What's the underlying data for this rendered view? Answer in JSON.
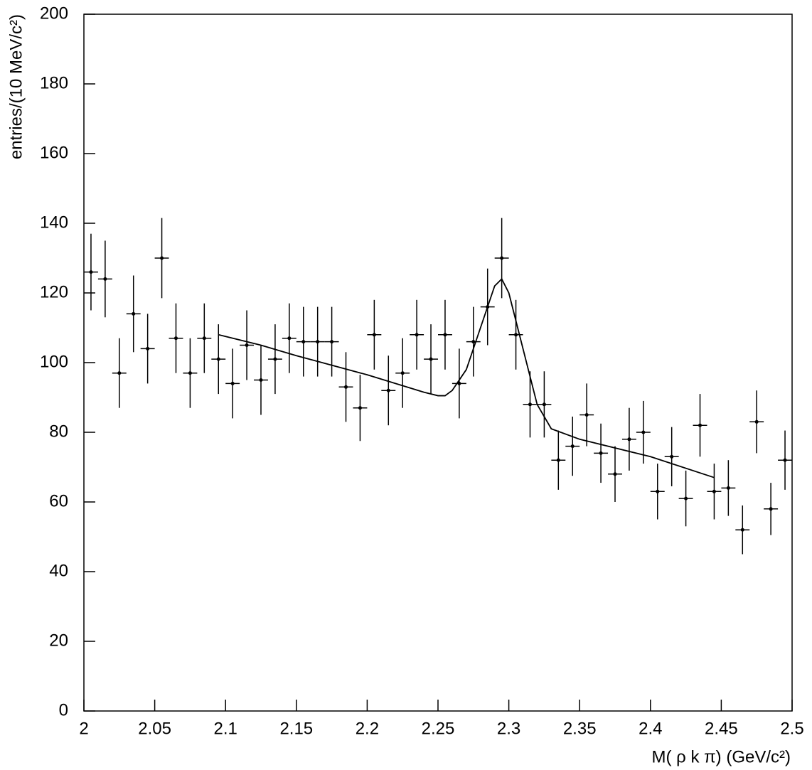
{
  "chart_data": {
    "type": "scatter",
    "x_label": "M( ρ k π) (GeV/c²)",
    "y_label": "entries/(10 MeV/c²)",
    "color": "#000000",
    "xlim": [
      2,
      2.5
    ],
    "ylim": [
      0,
      200
    ],
    "xticks": [
      2,
      2.05,
      2.1,
      2.15,
      2.2,
      2.25,
      2.3,
      2.35,
      2.4,
      2.45,
      2.5
    ],
    "yticks": [
      0,
      20,
      40,
      60,
      80,
      100,
      120,
      140,
      160,
      180,
      200
    ],
    "x": [
      2.005,
      2.015,
      2.025,
      2.035,
      2.045,
      2.055,
      2.065,
      2.075,
      2.085,
      2.095,
      2.105,
      2.115,
      2.125,
      2.135,
      2.145,
      2.155,
      2.165,
      2.175,
      2.185,
      2.195,
      2.205,
      2.215,
      2.225,
      2.235,
      2.245,
      2.255,
      2.265,
      2.275,
      2.285,
      2.295,
      2.305,
      2.315,
      2.325,
      2.335,
      2.345,
      2.355,
      2.365,
      2.375,
      2.385,
      2.395,
      2.405,
      2.415,
      2.425,
      2.435,
      2.445,
      2.455,
      2.465,
      2.475,
      2.485,
      2.495
    ],
    "values": [
      126,
      124,
      97,
      114,
      104,
      130,
      107,
      97,
      107,
      101,
      94,
      105,
      95,
      101,
      107,
      106,
      106,
      106,
      93,
      87,
      108,
      92,
      97,
      108,
      101,
      108,
      94,
      106,
      116,
      130,
      108,
      88,
      88,
      72,
      76,
      85,
      74,
      68,
      78,
      80,
      63,
      73,
      61,
      82,
      63,
      64,
      52,
      83,
      58,
      72
    ],
    "errors": [
      11,
      11,
      10,
      11,
      10,
      11.5,
      10,
      10,
      10,
      10,
      10,
      10,
      10,
      10,
      10,
      10,
      10,
      10,
      10,
      9.5,
      10,
      10,
      10,
      10,
      10,
      10,
      10,
      10,
      11,
      11.5,
      10,
      9.5,
      9.5,
      8.5,
      8.5,
      9,
      8.5,
      8,
      9,
      9,
      8,
      8.5,
      8,
      9,
      8,
      8,
      7,
      9,
      7.5,
      8.5
    ],
    "fit": {
      "x": [
        2.095,
        2.125,
        2.15,
        2.2,
        2.24,
        2.25,
        2.255,
        2.26,
        2.27,
        2.28,
        2.29,
        2.295,
        2.3,
        2.31,
        2.32,
        2.33,
        2.35,
        2.4,
        2.445
      ],
      "values": [
        108,
        105,
        102,
        96.5,
        91.5,
        90.5,
        90.5,
        92,
        98,
        110,
        122,
        124,
        120,
        104,
        88,
        81,
        78,
        73,
        67
      ]
    }
  }
}
